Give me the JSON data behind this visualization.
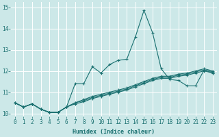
{
  "bg_color": "#cce8e8",
  "plot_bg_color": "#cce8e8",
  "grid_color": "#ffffff",
  "line_color": "#1a7070",
  "xlabel": "Humidex (Indice chaleur)",
  "xlim": [
    -0.5,
    23.5
  ],
  "ylim": [
    9.85,
    15.25
  ],
  "yticks": [
    10,
    11,
    12,
    13,
    14,
    15
  ],
  "xticks": [
    0,
    1,
    2,
    3,
    4,
    5,
    6,
    7,
    8,
    9,
    10,
    11,
    12,
    13,
    14,
    15,
    16,
    17,
    18,
    19,
    20,
    21,
    22,
    23
  ],
  "xtick_labels": [
    "0",
    "1",
    "2",
    "3",
    "4",
    "5",
    "6",
    "7",
    "8",
    "9",
    "10",
    "11",
    "12",
    "13",
    "14",
    "15",
    "16",
    "17",
    "18",
    "19",
    "20",
    "21",
    "22",
    "23"
  ],
  "line1_y": [
    10.5,
    10.3,
    10.45,
    10.2,
    10.05,
    10.05,
    10.3,
    11.4,
    11.4,
    12.2,
    11.9,
    12.3,
    12.5,
    12.55,
    13.6,
    14.85,
    13.8,
    12.1,
    11.6,
    11.55,
    11.3,
    11.3,
    12.05,
    11.9
  ],
  "line2_y": [
    10.5,
    10.3,
    10.45,
    10.2,
    10.05,
    10.05,
    10.3,
    10.5,
    10.65,
    10.8,
    10.9,
    11.0,
    11.1,
    11.2,
    11.35,
    11.5,
    11.65,
    11.75,
    11.75,
    11.85,
    11.9,
    12.0,
    12.1,
    12.0
  ],
  "line3_y": [
    10.5,
    10.3,
    10.45,
    10.2,
    10.05,
    10.05,
    10.3,
    10.5,
    10.6,
    10.75,
    10.85,
    10.95,
    11.05,
    11.15,
    11.3,
    11.45,
    11.6,
    11.7,
    11.7,
    11.8,
    11.85,
    11.95,
    12.05,
    11.95
  ],
  "line4_y": [
    10.5,
    10.3,
    10.45,
    10.2,
    10.05,
    10.05,
    10.3,
    10.45,
    10.55,
    10.7,
    10.8,
    10.9,
    11.0,
    11.1,
    11.25,
    11.4,
    11.55,
    11.65,
    11.65,
    11.75,
    11.8,
    11.9,
    12.0,
    11.9
  ],
  "tick_fontsize": 5.5,
  "xlabel_fontsize": 6.0
}
